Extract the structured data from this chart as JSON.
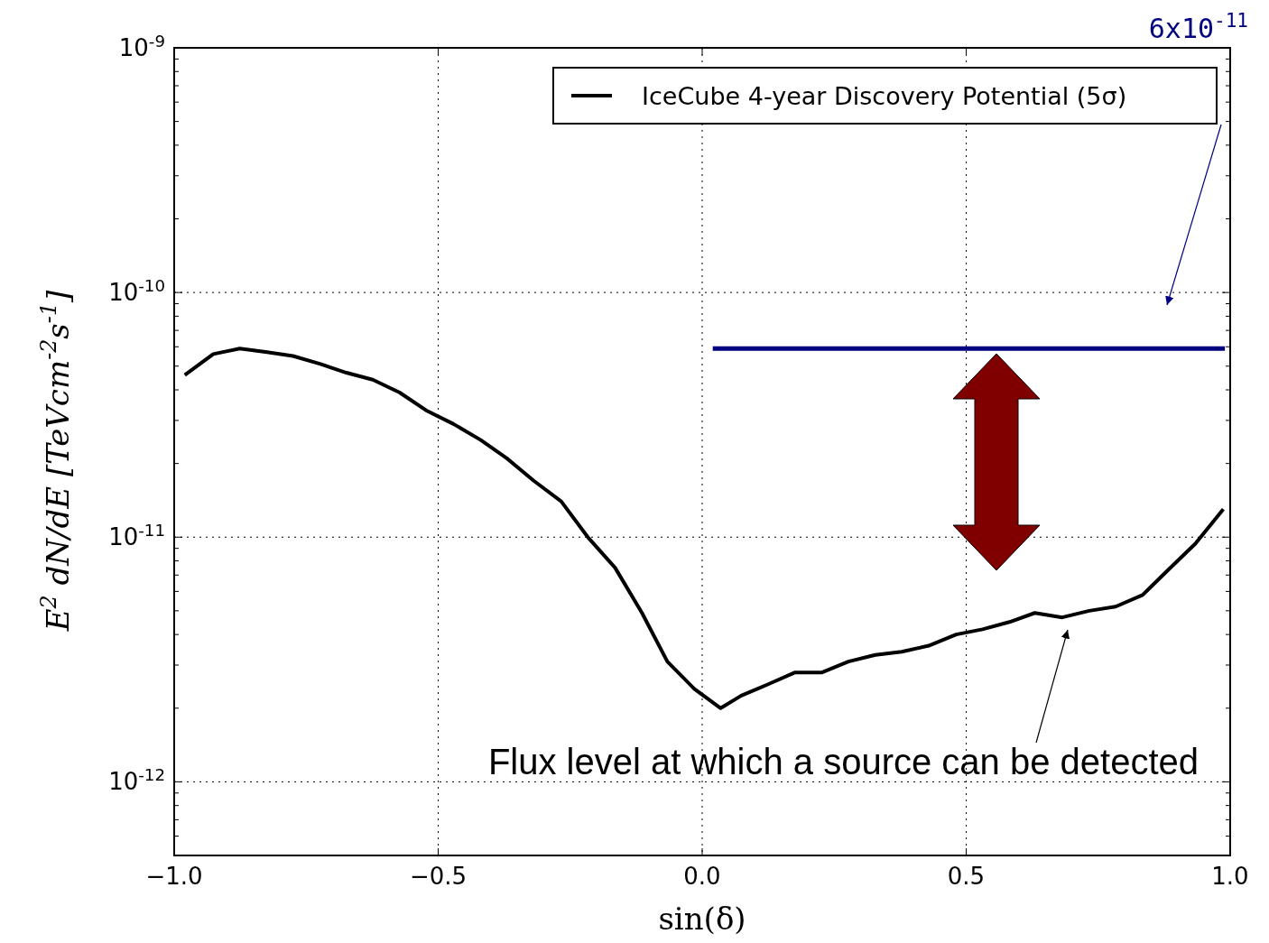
{
  "chart_data": {
    "type": "line",
    "xlabel": "sin(δ)",
    "ylabel": "E$^{2}$ dN/dE [TeVcm$^{-2}$s$^{-1}$]",
    "log": "y",
    "grid": true,
    "legend": "top right",
    "line_style": "solid",
    "xlim": [
      -1.0,
      1.0
    ],
    "ylim": [
      5e-13,
      1e-09
    ],
    "xticks": [
      {
        "value": -1.0,
        "label": "−1.0"
      },
      {
        "value": -0.5,
        "label": "−0.5"
      },
      {
        "value": 0.0,
        "label": "0.0"
      },
      {
        "value": 0.5,
        "label": "0.5"
      },
      {
        "value": 1.0,
        "label": "1.0"
      }
    ],
    "yticks": [
      {
        "value": 1e-12,
        "label": "10$^{-12}$"
      },
      {
        "value": 1e-11,
        "label": "10$^{-11}$"
      },
      {
        "value": 1e-10,
        "label": "10$^{-10}$"
      },
      {
        "value": 1e-09,
        "label": "10$^{-9}$"
      }
    ],
    "series": [
      {
        "name": "IceCube 4-year Discovery Potential (5σ)",
        "color": "#000000",
        "x": [
          -0.98,
          -0.926,
          -0.876,
          -0.824,
          -0.775,
          -0.723,
          -0.674,
          -0.624,
          -0.573,
          -0.523,
          -0.471,
          -0.42,
          -0.37,
          -0.319,
          -0.267,
          -0.215,
          -0.165,
          -0.114,
          -0.066,
          -0.015,
          0.035,
          0.074,
          0.124,
          0.176,
          0.227,
          0.277,
          0.328,
          0.378,
          0.429,
          0.481,
          0.531,
          0.582,
          0.63,
          0.682,
          0.733,
          0.783,
          0.834,
          0.884,
          0.934,
          0.987
        ],
        "values": [
          4.6e-11,
          5.6e-11,
          5.9e-11,
          5.7e-11,
          5.5e-11,
          5.1e-11,
          4.7e-11,
          4.4e-11,
          3.9e-11,
          3.3e-11,
          2.9e-11,
          2.5e-11,
          2.1e-11,
          1.7e-11,
          1.4e-11,
          9.9e-12,
          7.5e-12,
          4.9e-12,
          3.1e-12,
          2.4e-12,
          2e-12,
          2.25e-12,
          2.5e-12,
          2.8e-12,
          2.8e-12,
          3.1e-12,
          3.3e-12,
          3.4e-12,
          3.6e-12,
          4e-12,
          4.2e-12,
          4.5e-12,
          4.9e-12,
          4.7e-12,
          5e-12,
          5.2e-12,
          5.8e-12,
          7.4e-12,
          9.4e-12,
          1.3e-11
        ]
      },
      {
        "color": "#000080",
        "x": [
          0.02,
          0.99
        ],
        "values": [
          5.9e-11,
          5.9e-11
        ]
      }
    ],
    "annotations": [
      "6x10$^{-11}$",
      "Flux level at which a source can be detected"
    ]
  }
}
